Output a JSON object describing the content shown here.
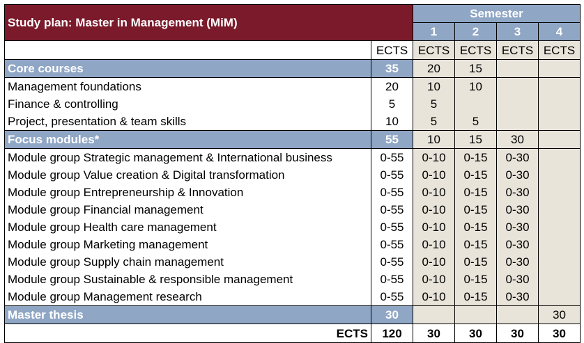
{
  "title": "Study plan: Master in Management (MiM)",
  "semester_header": "Semester",
  "semesters": [
    "1",
    "2",
    "3",
    "4"
  ],
  "unit_label": "ECTS",
  "colors": {
    "title_bg": "#7B1A2B",
    "header_bg": "#8FA6C5",
    "semester_cell_bg": "#E8E4DA"
  },
  "rows": [
    {
      "type": "section",
      "label": "Core courses",
      "ects": "35",
      "sem": [
        "20",
        "15",
        "",
        ""
      ]
    },
    {
      "type": "item",
      "label": "Management foundations",
      "ects": "20",
      "sem": [
        "10",
        "10",
        "",
        ""
      ]
    },
    {
      "type": "item",
      "label": "Finance & controlling",
      "ects": "5",
      "sem": [
        "5",
        "",
        "",
        ""
      ]
    },
    {
      "type": "item",
      "label": "Project, presentation & team skills",
      "ects": "10",
      "sem": [
        "5",
        "5",
        "",
        ""
      ]
    },
    {
      "type": "section",
      "label": "Focus modules*",
      "ects": "55",
      "sem": [
        "10",
        "15",
        "30",
        ""
      ]
    },
    {
      "type": "item",
      "label": "Module group Strategic management & International business",
      "ects": "0-55",
      "sem": [
        "0-10",
        "0-15",
        "0-30",
        ""
      ]
    },
    {
      "type": "item",
      "label": "Module group Value creation & Digital transformation",
      "ects": "0-55",
      "sem": [
        "0-10",
        "0-15",
        "0-30",
        ""
      ]
    },
    {
      "type": "item",
      "label": "Module group Entrepreneurship & Innovation",
      "ects": "0-55",
      "sem": [
        "0-10",
        "0-15",
        "0-30",
        ""
      ]
    },
    {
      "type": "item",
      "label": "Module group Financial management",
      "ects": "0-55",
      "sem": [
        "0-10",
        "0-15",
        "0-30",
        ""
      ]
    },
    {
      "type": "item",
      "label": "Module group Health care management",
      "ects": "0-55",
      "sem": [
        "0-10",
        "0-15",
        "0-30",
        ""
      ]
    },
    {
      "type": "item",
      "label": "Module group Marketing management",
      "ects": "0-55",
      "sem": [
        "0-10",
        "0-15",
        "0-30",
        ""
      ]
    },
    {
      "type": "item",
      "label": "Module group Supply chain management",
      "ects": "0-55",
      "sem": [
        "0-10",
        "0-15",
        "0-30",
        ""
      ]
    },
    {
      "type": "item",
      "label": "Module group Sustainable & responsible management",
      "ects": "0-55",
      "sem": [
        "0-10",
        "0-15",
        "0-30",
        ""
      ]
    },
    {
      "type": "item",
      "label": "Module group Management research",
      "ects": "0-55",
      "sem": [
        "0-10",
        "0-15",
        "0-30",
        ""
      ]
    },
    {
      "type": "section",
      "label": "Master thesis",
      "ects": "30",
      "sem": [
        "",
        "",
        "",
        "30"
      ]
    }
  ],
  "total": {
    "label": "ECTS",
    "ects": "120",
    "sem": [
      "30",
      "30",
      "30",
      "30"
    ]
  }
}
